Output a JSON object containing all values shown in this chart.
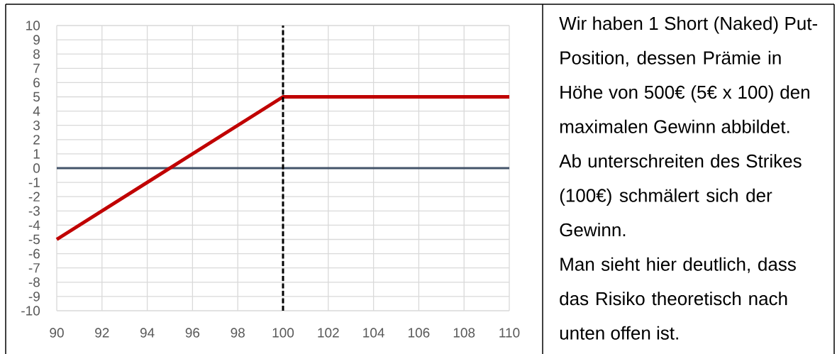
{
  "chart_data": {
    "type": "line",
    "x": [
      90,
      100,
      110
    ],
    "values": [
      -5,
      5,
      5
    ],
    "color": "#c00000",
    "xlim": [
      90,
      110
    ],
    "ylim": [
      -10,
      10
    ],
    "xticks": [
      90,
      92,
      94,
      96,
      98,
      100,
      102,
      104,
      106,
      108,
      110
    ],
    "yticks": [
      -10,
      -9,
      -8,
      -7,
      -6,
      -5,
      -4,
      -3,
      -2,
      -1,
      0,
      1,
      2,
      3,
      4,
      5,
      6,
      7,
      8,
      9,
      10
    ],
    "grid": true,
    "ref_lines": [
      {
        "axis": "y",
        "value": 0,
        "color": "#44546a"
      },
      {
        "axis": "x",
        "value": 100,
        "color": "#000000",
        "line_style": "dashed"
      }
    ],
    "annotations": [
      "Wir haben 1 Short (Naked) Put-Position, dessen Prämie in Höhe von 500€ (5€ x 100) den maximalen Gewinn abbildet.",
      "Ab unterschreiten des Strikes (100€) schmälert sich der Gewinn.",
      "Man sieht hier deutlich, dass das Risiko theoretisch nach unten offen ist."
    ]
  }
}
